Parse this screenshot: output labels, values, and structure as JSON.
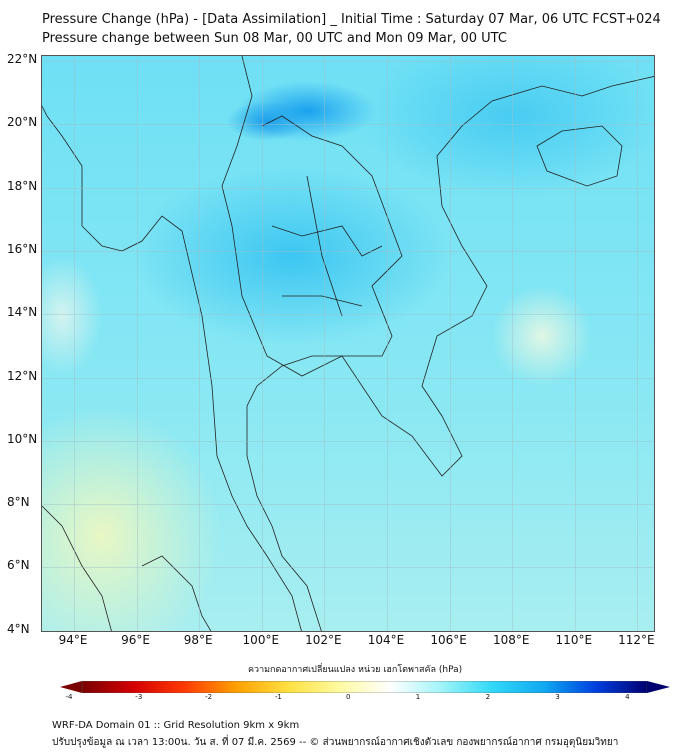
{
  "title": {
    "line1": "Pressure Change (hPa) - [Data Assimilation] _ Initial Time : Saturday 07 Mar, 06 UTC FCST+024",
    "line2": "Pressure change between Sun 08 Mar, 00 UTC and Mon 09 Mar, 00 UTC"
  },
  "map": {
    "lat_labels": [
      "22°N",
      "20°N",
      "18°N",
      "16°N",
      "14°N",
      "12°N",
      "10°N",
      "8°N",
      "6°N",
      "4°N"
    ],
    "lon_labels": [
      "94°E",
      "96°E",
      "98°E",
      "100°E",
      "102°E",
      "104°E",
      "106°E",
      "108°E",
      "110°E",
      "112°E"
    ]
  },
  "colorbar": {
    "label": "ความกดอากาศเปลี่ยนแปลง หน่วย เฮกโตพาสคัล (hPa)",
    "ticks": [
      "-4",
      "-3",
      "-2",
      "-1",
      "0",
      "1",
      "2",
      "3",
      "4"
    ],
    "colors": [
      "#7a0000",
      "#d40000",
      "#ff3a00",
      "#ffa000",
      "#ffe040",
      "#fffaa0",
      "#ffffff",
      "#a0f4f8",
      "#30d8f8",
      "#10a8f0",
      "#0040e0",
      "#000070"
    ]
  },
  "footer": {
    "line1": "WRF-DA Domain 01 :: Grid Resolution 9km x 9km",
    "line2": "ปรับปรุงข้อมูล ณ เวลา 13:00น. วัน ส. ที่ 07 มี.ค. 2569 -- © ส่วนพยากรณ์อากาศเชิงตัวเลข กองพยากรณ์อากาศ กรมอุตุนิยมวิทยา"
  }
}
